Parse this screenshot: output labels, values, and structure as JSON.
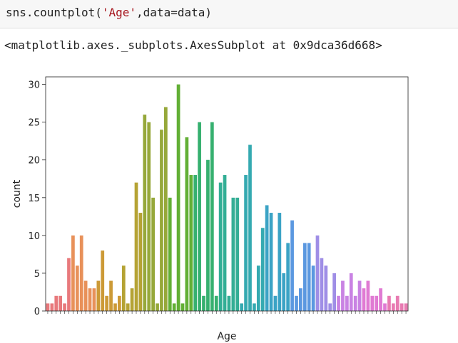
{
  "cell": {
    "code_fn": "sns.countplot(",
    "code_arg_str": "'Age'",
    "code_rest": ",data=data)"
  },
  "output": {
    "repr": "<matplotlib.axes._subplots.AxesSubplot at 0x9dca36d668>"
  },
  "chart_data": {
    "type": "bar",
    "xlabel": "Age",
    "ylabel": "count",
    "ylim": [
      0,
      31
    ],
    "yticks": [
      0,
      5,
      10,
      15,
      20,
      25,
      30
    ],
    "grid": false,
    "values": [
      1,
      1,
      2,
      2,
      1,
      7,
      10,
      6,
      10,
      4,
      3,
      3,
      4,
      8,
      2,
      4,
      1,
      2,
      6,
      1,
      3,
      17,
      13,
      26,
      25,
      15,
      1,
      24,
      27,
      15,
      1,
      30,
      1,
      23,
      18,
      18,
      25,
      2,
      20,
      25,
      2,
      17,
      18,
      2,
      15,
      15,
      1,
      18,
      22,
      1,
      6,
      11,
      14,
      13,
      2,
      13,
      5,
      9,
      12,
      2,
      3,
      9,
      9,
      6,
      10,
      7,
      6,
      1,
      5,
      2,
      4,
      2,
      5,
      2,
      4,
      3,
      4,
      2,
      2,
      3,
      1,
      2,
      1,
      2,
      1,
      1
    ],
    "palette": [
      "#e8797c",
      "#e8915a",
      "#cc9a37",
      "#b5a334",
      "#96a83a",
      "#62af35",
      "#36b06f",
      "#33ae95",
      "#35aab1",
      "#3ba3c5",
      "#5b98e0",
      "#9f8ee6",
      "#c982e3",
      "#e07ad3",
      "#e87bb2"
    ]
  }
}
